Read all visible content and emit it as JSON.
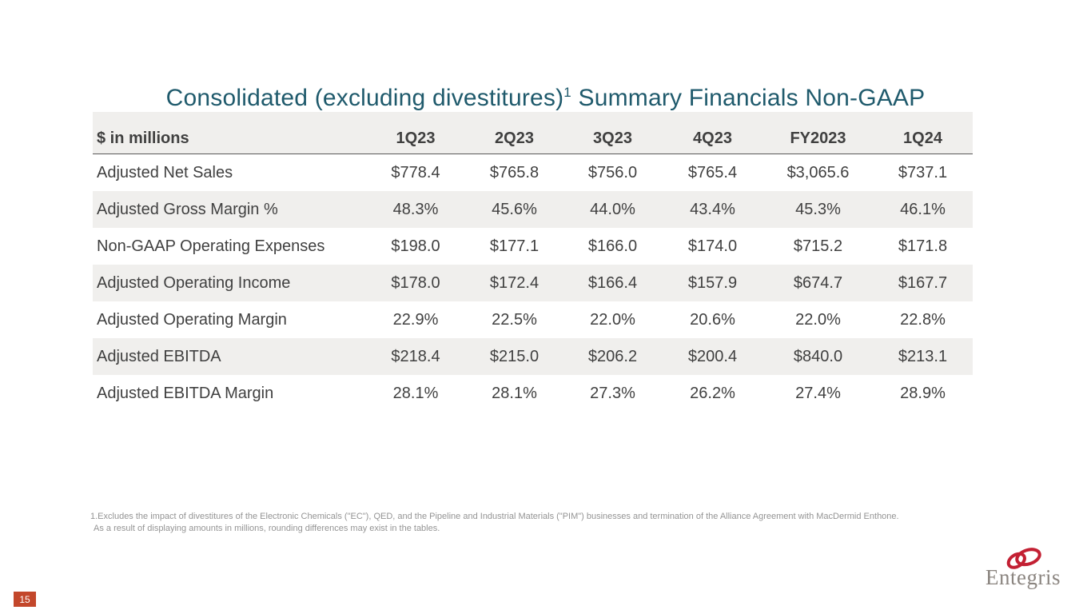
{
  "slide": {
    "title_prefix": "Consolidated (excluding divestitures)",
    "title_sup": "1",
    "title_suffix": " Summary Financials Non-GAAP",
    "page_number": "15"
  },
  "table": {
    "unit_label": "$ in millions",
    "columns": [
      "1Q23",
      "2Q23",
      "3Q23",
      "4Q23",
      "FY2023",
      "1Q24"
    ],
    "rows": [
      {
        "label": "Adjusted Net Sales",
        "values": [
          "$778.4",
          "$765.8",
          "$756.0",
          "$765.4",
          "$3,065.6",
          "$737.1"
        ]
      },
      {
        "label": "Adjusted Gross Margin %",
        "values": [
          "48.3%",
          "45.6%",
          "44.0%",
          "43.4%",
          "45.3%",
          "46.1%"
        ]
      },
      {
        "label": "Non-GAAP Operating Expenses",
        "values": [
          "$198.0",
          "$177.1",
          "$166.0",
          "$174.0",
          "$715.2",
          "$171.8"
        ]
      },
      {
        "label": "Adjusted Operating Income",
        "values": [
          "$178.0",
          "$172.4",
          "$166.4",
          "$157.9",
          "$674.7",
          "$167.7"
        ]
      },
      {
        "label": "Adjusted Operating Margin",
        "values": [
          "22.9%",
          "22.5%",
          "22.0%",
          "20.6%",
          "22.0%",
          "22.8%"
        ]
      },
      {
        "label": "Adjusted EBITDA",
        "values": [
          "$218.4",
          "$215.0",
          "$206.2",
          "$200.4",
          "$840.0",
          "$213.1"
        ]
      },
      {
        "label": "Adjusted EBITDA Margin",
        "values": [
          "28.1%",
          "28.1%",
          "27.3%",
          "26.2%",
          "27.4%",
          "28.9%"
        ]
      }
    ]
  },
  "footnote": {
    "line1": "1.Excludes the impact of divestitures of the Electronic Chemicals (\"EC\"), QED, and the Pipeline and Industrial Materials (\"PIM\") businesses and termination of the Alliance Agreement with MacDermid Enthone.",
    "line2": "As a result of displaying amounts in millions, rounding differences may exist in the tables."
  },
  "logo": {
    "name": "Entegris"
  },
  "colors": {
    "title": "#1f5a6c",
    "stripe": "#f0efed",
    "header_rule": "#595959",
    "body_text": "#404040",
    "footnote_text": "#949494",
    "badge_bg": "#c3472b",
    "badge_text": "#ffffff",
    "logo_red": "#c32033",
    "logo_gray": "#8b8580"
  }
}
